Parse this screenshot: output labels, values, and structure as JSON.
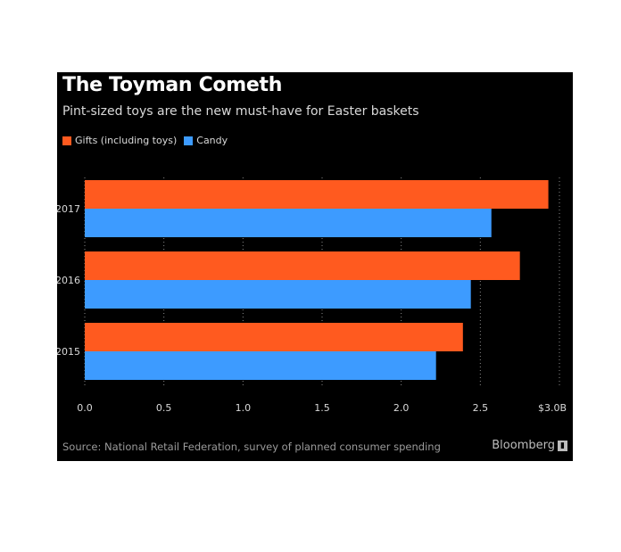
{
  "chart_data": {
    "type": "bar",
    "orientation": "horizontal",
    "title": "The Toyman Cometh",
    "subtitle": "Pint-sized toys are the new must-have for Easter baskets",
    "categories": [
      "2017",
      "2016",
      "2015"
    ],
    "series": [
      {
        "name": "Gifts (including toys)",
        "color": "#ff5a1f",
        "values": [
          2.93,
          2.75,
          2.39
        ]
      },
      {
        "name": "Candy",
        "color": "#3d9bff",
        "values": [
          2.57,
          2.44,
          2.22
        ]
      }
    ],
    "xlim": [
      0,
      3.0
    ],
    "ticks": [
      {
        "value": 0,
        "label": "0.0"
      },
      {
        "value": 0.5,
        "label": "0.5"
      },
      {
        "value": 1.0,
        "label": "1.0"
      },
      {
        "value": 1.5,
        "label": "1.5"
      },
      {
        "value": 2.0,
        "label": "2.0"
      },
      {
        "value": 2.5,
        "label": "2.5"
      },
      {
        "value": 3.0,
        "label": "$3.0B"
      }
    ],
    "grid": true,
    "legend": "top-left",
    "source": "Source: National Retail Federation, survey of planned consumer spending",
    "brand": "Bloomberg"
  }
}
